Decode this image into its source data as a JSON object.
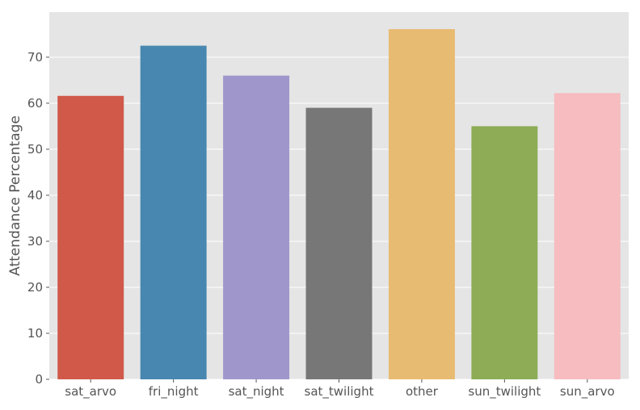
{
  "chart_data": {
    "type": "bar",
    "title": "",
    "xlabel": "",
    "ylabel": "Attendance Percentage",
    "categories": [
      "sat_arvo",
      "fri_night",
      "sat_night",
      "sat_twilight",
      "other",
      "sun_twilight",
      "sun_arvo"
    ],
    "values": [
      61.6,
      72.5,
      66.0,
      59.0,
      76.1,
      55.0,
      62.2
    ],
    "colors": [
      "#d0594a",
      "#4787b0",
      "#9f97cc",
      "#777777",
      "#e8bb72",
      "#8dac55",
      "#f6bcc0"
    ],
    "ylim": [
      0,
      79.8
    ],
    "yticks": [
      0,
      10,
      20,
      30,
      40,
      50,
      60,
      70
    ],
    "grid": true,
    "background": "#e5e5e5"
  }
}
